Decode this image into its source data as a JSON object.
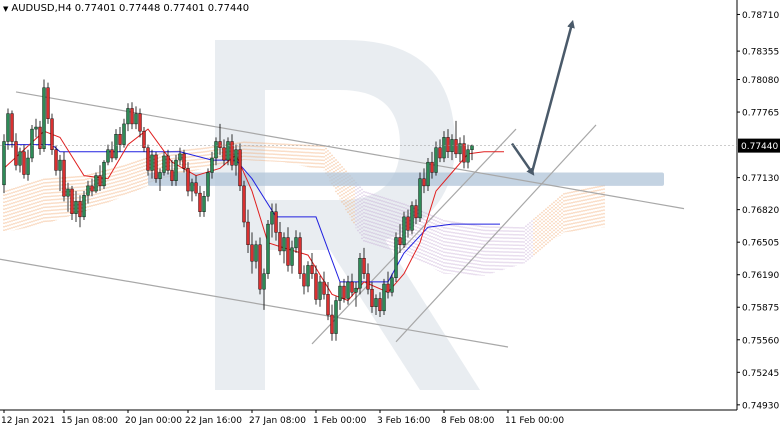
{
  "header": {
    "symbol_label": "AUDUSD,H4",
    "open": "0.77401",
    "high": "0.77448",
    "low": "0.77401",
    "close": "0.77440",
    "menu_icon": "triangle-down-icon"
  },
  "colors": {
    "bull_body": "#2e8b57",
    "bear_body": "#d93030",
    "wick": "#000000",
    "tenkan": "#e02020",
    "kijun": "#2020e0",
    "cloud_a": "#f0a060",
    "cloud_b": "#c0a0d0",
    "channel": "#a8a8a8",
    "support_band": "#b0c4d8",
    "arrow": "#4a5a6a",
    "price_label_bg": "#000000",
    "price_label_fg": "#ffffff",
    "watermark": "#e4e8ee"
  },
  "chart_data": {
    "type": "candlestick",
    "instrument": "AUDUSD",
    "timeframe": "H4",
    "current_price": 0.7744,
    "current_price_label": "0.77440",
    "y_axis": {
      "range": [
        0.7488,
        0.7885
      ],
      "ticks": [
        "0.78710",
        "0.78355",
        "0.78080",
        "0.77765",
        "0.77440",
        "0.77130",
        "0.76820",
        "0.76505",
        "0.76190",
        "0.75875",
        "0.75560",
        "0.75245",
        "0.74930"
      ]
    },
    "x_axis": {
      "ticks": [
        {
          "label": "12 Jan 2021",
          "bar": 0
        },
        {
          "label": "15 Jan 08:00",
          "bar": 15
        },
        {
          "label": "20 Jan 00:00",
          "bar": 31
        },
        {
          "label": "22 Jan 16:00",
          "bar": 46
        },
        {
          "label": "27 Jan 08:00",
          "bar": 62
        },
        {
          "label": "1 Feb 00:00",
          "bar": 78
        },
        {
          "label": "3 Feb 16:00",
          "bar": 94
        },
        {
          "label": "8 Feb 08:00",
          "bar": 110
        },
        {
          "label": "11 Feb 00:00",
          "bar": 126
        }
      ]
    },
    "candles": [
      [
        0.7706,
        0.7755,
        0.7698,
        0.7748
      ],
      [
        0.7748,
        0.778,
        0.774,
        0.7775
      ],
      [
        0.7775,
        0.7778,
        0.7742,
        0.7748
      ],
      [
        0.7748,
        0.7756,
        0.772,
        0.7725
      ],
      [
        0.7725,
        0.7742,
        0.7718,
        0.7738
      ],
      [
        0.7738,
        0.7745,
        0.7712,
        0.7716
      ],
      [
        0.7716,
        0.774,
        0.771,
        0.7732
      ],
      [
        0.7732,
        0.7764,
        0.7728,
        0.776
      ],
      [
        0.776,
        0.777,
        0.7752,
        0.7762
      ],
      [
        0.7762,
        0.7768,
        0.7735,
        0.7741
      ],
      [
        0.7741,
        0.7808,
        0.7738,
        0.78
      ],
      [
        0.78,
        0.7805,
        0.7765,
        0.777
      ],
      [
        0.777,
        0.7775,
        0.7735,
        0.774
      ],
      [
        0.774,
        0.7744,
        0.7715,
        0.772
      ],
      [
        0.772,
        0.7735,
        0.77,
        0.773
      ],
      [
        0.773,
        0.7738,
        0.769,
        0.7695
      ],
      [
        0.7695,
        0.7708,
        0.768,
        0.7702
      ],
      [
        0.7702,
        0.7705,
        0.7672,
        0.7678
      ],
      [
        0.7678,
        0.77,
        0.767,
        0.769
      ],
      [
        0.769,
        0.7696,
        0.7665,
        0.7675
      ],
      [
        0.7675,
        0.77,
        0.7672,
        0.7696
      ],
      [
        0.7696,
        0.771,
        0.7688,
        0.7705
      ],
      [
        0.7705,
        0.7712,
        0.7695,
        0.77
      ],
      [
        0.77,
        0.7718,
        0.7698,
        0.7715
      ],
      [
        0.7715,
        0.7725,
        0.77,
        0.7705
      ],
      [
        0.7705,
        0.773,
        0.7702,
        0.7728
      ],
      [
        0.7728,
        0.7745,
        0.7725,
        0.774
      ],
      [
        0.774,
        0.7748,
        0.7728,
        0.7732
      ],
      [
        0.7732,
        0.776,
        0.773,
        0.7755
      ],
      [
        0.7755,
        0.7762,
        0.7738,
        0.7745
      ],
      [
        0.7745,
        0.777,
        0.7742,
        0.7765
      ],
      [
        0.7765,
        0.7785,
        0.7758,
        0.778
      ],
      [
        0.778,
        0.7786,
        0.776,
        0.7765
      ],
      [
        0.7765,
        0.7782,
        0.776,
        0.7775
      ],
      [
        0.7775,
        0.778,
        0.7752,
        0.7758
      ],
      [
        0.7758,
        0.7762,
        0.7738,
        0.7742
      ],
      [
        0.7742,
        0.7745,
        0.7715,
        0.772
      ],
      [
        0.772,
        0.774,
        0.7712,
        0.7735
      ],
      [
        0.7735,
        0.7738,
        0.7708,
        0.7712
      ],
      [
        0.7712,
        0.7722,
        0.77,
        0.7718
      ],
      [
        0.7718,
        0.7738,
        0.7715,
        0.7734
      ],
      [
        0.7734,
        0.774,
        0.7716,
        0.772
      ],
      [
        0.772,
        0.773,
        0.7705,
        0.771
      ],
      [
        0.771,
        0.7735,
        0.7705,
        0.773
      ],
      [
        0.773,
        0.7742,
        0.7725,
        0.7736
      ],
      [
        0.7736,
        0.774,
        0.7718,
        0.7722
      ],
      [
        0.7722,
        0.7728,
        0.7695,
        0.77
      ],
      [
        0.77,
        0.7712,
        0.769,
        0.7708
      ],
      [
        0.7708,
        0.7715,
        0.7695,
        0.7698
      ],
      [
        0.7698,
        0.7705,
        0.7675,
        0.768
      ],
      [
        0.768,
        0.77,
        0.7675,
        0.7695
      ],
      [
        0.7695,
        0.7722,
        0.769,
        0.7718
      ],
      [
        0.7718,
        0.7738,
        0.7712,
        0.7732
      ],
      [
        0.7732,
        0.7752,
        0.7725,
        0.7748
      ],
      [
        0.7748,
        0.7765,
        0.7735,
        0.7742
      ],
      [
        0.7742,
        0.775,
        0.7725,
        0.773
      ],
      [
        0.773,
        0.7752,
        0.7725,
        0.7748
      ],
      [
        0.7748,
        0.7755,
        0.772,
        0.7725
      ],
      [
        0.7725,
        0.7745,
        0.7715,
        0.774
      ],
      [
        0.774,
        0.7746,
        0.77,
        0.7705
      ],
      [
        0.7705,
        0.771,
        0.7665,
        0.767
      ],
      [
        0.767,
        0.7682,
        0.764,
        0.7648
      ],
      [
        0.7648,
        0.766,
        0.762,
        0.7632
      ],
      [
        0.7632,
        0.7652,
        0.7625,
        0.7648
      ],
      [
        0.7648,
        0.7655,
        0.76,
        0.7605
      ],
      [
        0.7605,
        0.7625,
        0.7585,
        0.762
      ],
      [
        0.762,
        0.7672,
        0.7615,
        0.7668
      ],
      [
        0.7668,
        0.7688,
        0.7655,
        0.768
      ],
      [
        0.768,
        0.7688,
        0.7652,
        0.766
      ],
      [
        0.766,
        0.767,
        0.7638,
        0.7642
      ],
      [
        0.7642,
        0.766,
        0.763,
        0.7655
      ],
      [
        0.7655,
        0.7665,
        0.7622,
        0.7628
      ],
      [
        0.7628,
        0.7652,
        0.762,
        0.7645
      ],
      [
        0.7645,
        0.7662,
        0.764,
        0.7655
      ],
      [
        0.7655,
        0.766,
        0.7615,
        0.762
      ],
      [
        0.762,
        0.7628,
        0.76,
        0.7608
      ],
      [
        0.7608,
        0.7632,
        0.7602,
        0.7628
      ],
      [
        0.7628,
        0.764,
        0.7615,
        0.762
      ],
      [
        0.762,
        0.7628,
        0.759,
        0.7595
      ],
      [
        0.7595,
        0.7618,
        0.7588,
        0.7612
      ],
      [
        0.7612,
        0.7622,
        0.7595,
        0.76
      ],
      [
        0.76,
        0.7612,
        0.7575,
        0.758
      ],
      [
        0.758,
        0.759,
        0.7555,
        0.7562
      ],
      [
        0.7562,
        0.7598,
        0.7555,
        0.7594
      ],
      [
        0.7594,
        0.7612,
        0.7585,
        0.7608
      ],
      [
        0.7608,
        0.7615,
        0.7592,
        0.7596
      ],
      [
        0.7596,
        0.7618,
        0.759,
        0.7612
      ],
      [
        0.7612,
        0.762,
        0.7598,
        0.7602
      ],
      [
        0.7602,
        0.7612,
        0.7588,
        0.7606
      ],
      [
        0.7606,
        0.764,
        0.76,
        0.7635
      ],
      [
        0.7635,
        0.7645,
        0.7615,
        0.762
      ],
      [
        0.762,
        0.763,
        0.76,
        0.7605
      ],
      [
        0.7605,
        0.7612,
        0.7582,
        0.7588
      ],
      [
        0.7588,
        0.76,
        0.758,
        0.7596
      ],
      [
        0.7596,
        0.7602,
        0.7578,
        0.7584
      ],
      [
        0.7584,
        0.7615,
        0.758,
        0.761
      ],
      [
        0.761,
        0.7622,
        0.7596,
        0.7602
      ],
      [
        0.7602,
        0.762,
        0.7598,
        0.7616
      ],
      [
        0.7616,
        0.766,
        0.7612,
        0.7655
      ],
      [
        0.7655,
        0.7668,
        0.764,
        0.7648
      ],
      [
        0.7648,
        0.768,
        0.7645,
        0.7675
      ],
      [
        0.7675,
        0.7682,
        0.7655,
        0.7662
      ],
      [
        0.7662,
        0.769,
        0.7658,
        0.7686
      ],
      [
        0.7686,
        0.7692,
        0.7668,
        0.7674
      ],
      [
        0.7674,
        0.7718,
        0.767,
        0.7712
      ],
      [
        0.7712,
        0.7722,
        0.7698,
        0.7705
      ],
      [
        0.7705,
        0.7732,
        0.77,
        0.7728
      ],
      [
        0.7728,
        0.7738,
        0.7712,
        0.7718
      ],
      [
        0.7718,
        0.7748,
        0.7715,
        0.7742
      ],
      [
        0.7742,
        0.775,
        0.7728,
        0.7732
      ],
      [
        0.7732,
        0.7758,
        0.7728,
        0.7752
      ],
      [
        0.7752,
        0.776,
        0.7732,
        0.7738
      ],
      [
        0.7738,
        0.7755,
        0.773,
        0.775
      ],
      [
        0.775,
        0.7768,
        0.7732,
        0.7736
      ],
      [
        0.7736,
        0.7752,
        0.7728,
        0.7746
      ],
      [
        0.7746,
        0.7754,
        0.7722,
        0.7728
      ],
      [
        0.7728,
        0.7745,
        0.7722,
        0.774
      ],
      [
        0.774,
        0.7745,
        0.773,
        0.7744
      ]
    ],
    "tenkan": [
      [
        0,
        0.7722
      ],
      [
        10,
        0.7758
      ],
      [
        14,
        0.7752
      ],
      [
        20,
        0.7715
      ],
      [
        26,
        0.7712
      ],
      [
        31,
        0.7745
      ],
      [
        36,
        0.776
      ],
      [
        42,
        0.7728
      ],
      [
        48,
        0.7715
      ],
      [
        54,
        0.7722
      ],
      [
        58,
        0.7735
      ],
      [
        62,
        0.77
      ],
      [
        66,
        0.765
      ],
      [
        70,
        0.7645
      ],
      [
        76,
        0.7638
      ],
      [
        82,
        0.76
      ],
      [
        86,
        0.7594
      ],
      [
        90,
        0.7612
      ],
      [
        96,
        0.7602
      ],
      [
        100,
        0.762
      ],
      [
        104,
        0.765
      ],
      [
        108,
        0.77
      ],
      [
        112,
        0.7718
      ],
      [
        116,
        0.7736
      ],
      [
        120,
        0.7738
      ],
      [
        125,
        0.7738
      ]
    ],
    "kijun": [
      [
        0,
        0.7745
      ],
      [
        12,
        0.7745
      ],
      [
        14,
        0.7738
      ],
      [
        24,
        0.7738
      ],
      [
        26,
        0.7738
      ],
      [
        36,
        0.7738
      ],
      [
        44,
        0.7738
      ],
      [
        52,
        0.773
      ],
      [
        58,
        0.773
      ],
      [
        62,
        0.7712
      ],
      [
        68,
        0.7675
      ],
      [
        78,
        0.7675
      ],
      [
        84,
        0.7612
      ],
      [
        96,
        0.7612
      ],
      [
        100,
        0.764
      ],
      [
        106,
        0.7665
      ],
      [
        112,
        0.7668
      ],
      [
        124,
        0.7668
      ]
    ],
    "cloud": [
      [
        0,
        0.77,
        0.766
      ],
      [
        10,
        0.7712,
        0.7668
      ],
      [
        20,
        0.7715,
        0.768
      ],
      [
        30,
        0.7725,
        0.7695
      ],
      [
        40,
        0.7738,
        0.7712
      ],
      [
        50,
        0.7742,
        0.7722
      ],
      [
        60,
        0.7748,
        0.773
      ],
      [
        70,
        0.7746,
        0.7728
      ],
      [
        80,
        0.7744,
        0.772
      ],
      [
        90,
        0.77,
        0.765
      ],
      [
        100,
        0.7688,
        0.764
      ],
      [
        110,
        0.7672,
        0.762
      ],
      [
        120,
        0.7666,
        0.7618
      ],
      [
        130,
        0.7665,
        0.763
      ],
      [
        140,
        0.7698,
        0.766
      ],
      [
        150,
        0.7706,
        0.7665
      ]
    ],
    "channel_lines": [
      {
        "name": "upper-descending",
        "points": [
          [
            3,
            0.7796
          ],
          [
            170,
            0.7683
          ]
        ]
      },
      {
        "name": "lower-descending",
        "points": [
          [
            -1,
            0.7634
          ],
          [
            126,
            0.7549
          ]
        ]
      },
      {
        "name": "ascending-inner",
        "points": [
          [
            77,
            0.7552
          ],
          [
            128,
            0.776
          ]
        ]
      },
      {
        "name": "ascending-outer",
        "points": [
          [
            98,
            0.7554
          ],
          [
            148,
            0.7764
          ]
        ]
      }
    ],
    "support_zone": {
      "bars": [
        36,
        165
      ],
      "from": 0.7705,
      "to": 0.7718
    },
    "forecast": [
      [
        127,
        0.7746
      ],
      [
        132,
        0.7718
      ],
      [
        142,
        0.7862
      ]
    ]
  }
}
